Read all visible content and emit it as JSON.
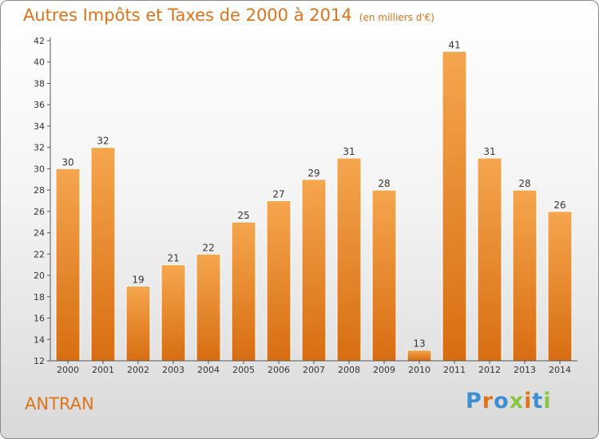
{
  "title": "Autres Impôts et Taxes de 2000 à 2014",
  "unit": "(en milliers d'€)",
  "place": "ANTRAN",
  "brand": "Proxiti",
  "brand_colors": [
    "#3d8fd4",
    "#e07318",
    "#3d8fd4",
    "#8bc43f",
    "#e07318",
    "#3d8fd4",
    "#8bc43f"
  ],
  "colors": {
    "accent": "#e07318",
    "bar_top": "#f5a64e",
    "bar_bottom": "#d86d12",
    "bar_edge": "#ffffff"
  },
  "chart_data": {
    "type": "bar",
    "title": "Autres Impôts et Taxes de 2000 à 2014",
    "subtitle": "(en milliers d'€)",
    "categories": [
      "2000",
      "2001",
      "2002",
      "2003",
      "2004",
      "2005",
      "2006",
      "2007",
      "2008",
      "2009",
      "2010",
      "2011",
      "2012",
      "2013",
      "2014"
    ],
    "values": [
      30,
      32,
      19,
      21,
      22,
      25,
      27,
      29,
      31,
      28,
      13,
      41,
      31,
      28,
      26
    ],
    "ylim": [
      12,
      42
    ],
    "yticks": [
      12,
      14,
      16,
      18,
      20,
      22,
      24,
      26,
      28,
      30,
      32,
      34,
      36,
      38,
      40,
      42
    ],
    "grid": false,
    "legend": "none"
  }
}
